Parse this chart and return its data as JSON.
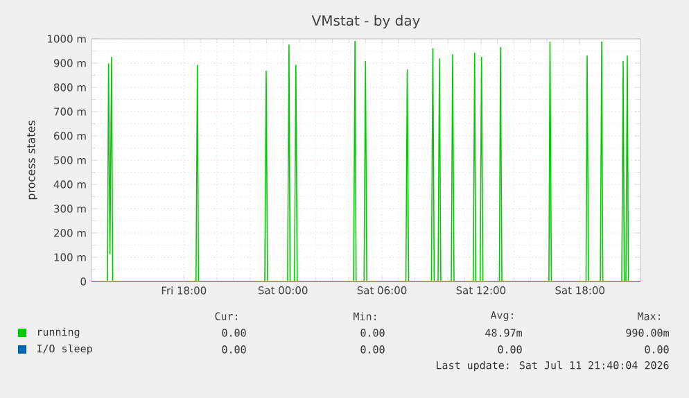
{
  "chart_data": {
    "type": "line",
    "title": "VMstat - by day",
    "ylabel": "process states",
    "xlim": [
      "2026-07-10T12:24",
      "2026-07-11T21:40"
    ],
    "xticks": [
      {
        "value": "2026-07-10T18:00",
        "label": "Fri 18:00"
      },
      {
        "value": "2026-07-11T00:00",
        "label": "Sat 00:00"
      },
      {
        "value": "2026-07-11T06:00",
        "label": "Sat 06:00"
      },
      {
        "value": "2026-07-11T12:00",
        "label": "Sat 12:00"
      },
      {
        "value": "2026-07-11T18:00",
        "label": "Sat 18:00"
      }
    ],
    "ylim": [
      0,
      1000
    ],
    "yticks": [
      {
        "value": 0,
        "label": "0"
      },
      {
        "value": 100,
        "label": "100 m"
      },
      {
        "value": 200,
        "label": "200 m"
      },
      {
        "value": 300,
        "label": "300 m"
      },
      {
        "value": 400,
        "label": "400 m"
      },
      {
        "value": 500,
        "label": "500 m"
      },
      {
        "value": 600,
        "label": "600 m"
      },
      {
        "value": 700,
        "label": "700 m"
      },
      {
        "value": 800,
        "label": "800 m"
      },
      {
        "value": 900,
        "label": "900 m"
      },
      {
        "value": 1000,
        "label": "1000 m"
      }
    ],
    "series": [
      {
        "name": "running",
        "color": "#00cc00",
        "x": [
          "2026-07-10T12:24",
          "2026-07-10T13:22",
          "2026-07-10T13:26",
          "2026-07-10T13:31",
          "2026-07-10T13:37",
          "2026-07-10T13:41",
          "2026-07-10T18:44",
          "2026-07-10T18:49",
          "2026-07-10T18:53",
          "2026-07-10T22:54",
          "2026-07-10T22:59",
          "2026-07-10T23:04",
          "2026-07-11T00:17",
          "2026-07-11T00:22",
          "2026-07-11T00:26",
          "2026-07-11T00:42",
          "2026-07-11T00:47",
          "2026-07-11T00:52",
          "2026-07-11T04:17",
          "2026-07-11T04:22",
          "2026-07-11T04:26",
          "2026-07-11T04:55",
          "2026-07-11T05:00",
          "2026-07-11T05:05",
          "2026-07-11T07:27",
          "2026-07-11T07:32",
          "2026-07-11T07:37",
          "2026-07-11T09:00",
          "2026-07-11T09:05",
          "2026-07-11T09:10",
          "2026-07-11T09:24",
          "2026-07-11T09:29",
          "2026-07-11T09:34",
          "2026-07-11T10:12",
          "2026-07-11T10:17",
          "2026-07-11T10:22",
          "2026-07-11T11:32",
          "2026-07-11T11:37",
          "2026-07-11T11:41",
          "2026-07-11T11:57",
          "2026-07-11T12:02",
          "2026-07-11T12:07",
          "2026-07-11T13:07",
          "2026-07-11T13:11",
          "2026-07-11T13:16",
          "2026-07-11T16:07",
          "2026-07-11T16:11",
          "2026-07-11T16:16",
          "2026-07-11T18:22",
          "2026-07-11T18:26",
          "2026-07-11T18:31",
          "2026-07-11T19:14",
          "2026-07-11T19:19",
          "2026-07-11T19:23",
          "2026-07-11T20:32",
          "2026-07-11T20:37",
          "2026-07-11T20:41",
          "2026-07-11T20:47",
          "2026-07-11T20:52",
          "2026-07-11T20:56",
          "2026-07-11T21:40"
        ],
        "values": [
          0,
          0,
          897,
          114,
          924,
          0,
          0,
          891,
          0,
          0,
          867,
          0,
          0,
          975,
          0,
          0,
          891,
          0,
          0,
          990,
          0,
          0,
          907,
          0,
          0,
          872,
          0,
          0,
          960,
          0,
          0,
          918,
          0,
          0,
          935,
          0,
          0,
          941,
          0,
          0,
          924,
          0,
          0,
          964,
          0,
          0,
          987,
          0,
          0,
          930,
          0,
          0,
          987,
          0,
          0,
          907,
          0,
          0,
          930,
          0,
          0
        ]
      },
      {
        "name": "I/O sleep",
        "color": "#0066b3",
        "x": [
          "2026-07-10T12:24",
          "2026-07-11T21:40"
        ],
        "values": [
          0,
          0
        ]
      }
    ],
    "grid": true,
    "legend": "bottom",
    "marker": "none",
    "line_style": "solid",
    "annotations": [
      "Cur:",
      "Min:",
      "Avg:",
      "Max:",
      "0.00",
      "0.00",
      "48.97m",
      "990.00m",
      "0.00",
      "0.00",
      "0.00",
      "0.00",
      "Last update: Sat Jul 11 21:40:04 2026"
    ]
  }
}
